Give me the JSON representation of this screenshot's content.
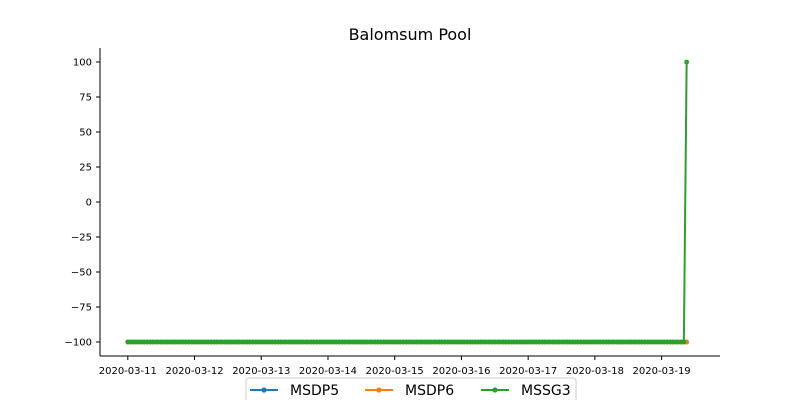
{
  "chart_data": {
    "type": "line",
    "title": "Balomsum Pool",
    "xlabel": "",
    "ylabel": "",
    "x_start": "2020-03-11 00:00",
    "x_step_hours": 1,
    "x_count": 202,
    "xlim": [
      "2020-03-10 14:00",
      "2020-03-19 21:00"
    ],
    "ylim": [
      -110,
      110
    ],
    "yticks": [
      -100,
      -75,
      -50,
      -25,
      0,
      25,
      50,
      75,
      100
    ],
    "ytick_labels": [
      "−100",
      "−75",
      "−50",
      "−25",
      "0",
      "25",
      "50",
      "75",
      "100"
    ],
    "xtick_labels": [
      "2020-03-11",
      "2020-03-12",
      "2020-03-13",
      "2020-03-14",
      "2020-03-15",
      "2020-03-16",
      "2020-03-17",
      "2020-03-18",
      "2020-03-19"
    ],
    "grid": false,
    "legend_position": "bottom-center",
    "series": [
      {
        "name": "MSDP5",
        "color": "#1f77b4",
        "segments": [
          {
            "from": "2020-03-11 00:00",
            "to": "2020-03-19 09:00",
            "value": -100
          }
        ]
      },
      {
        "name": "MSDP6",
        "color": "#ff7f0e",
        "segments": [
          {
            "from": "2020-03-11 00:00",
            "to": "2020-03-19 09:00",
            "value": -100
          }
        ]
      },
      {
        "name": "MSSG3",
        "color": "#2ca02c",
        "segments": [
          {
            "from": "2020-03-11 00:00",
            "to": "2020-03-19 08:00",
            "value": -100
          },
          {
            "from": "2020-03-19 09:00",
            "to": "2020-03-19 09:00",
            "value": 100
          }
        ]
      }
    ]
  }
}
